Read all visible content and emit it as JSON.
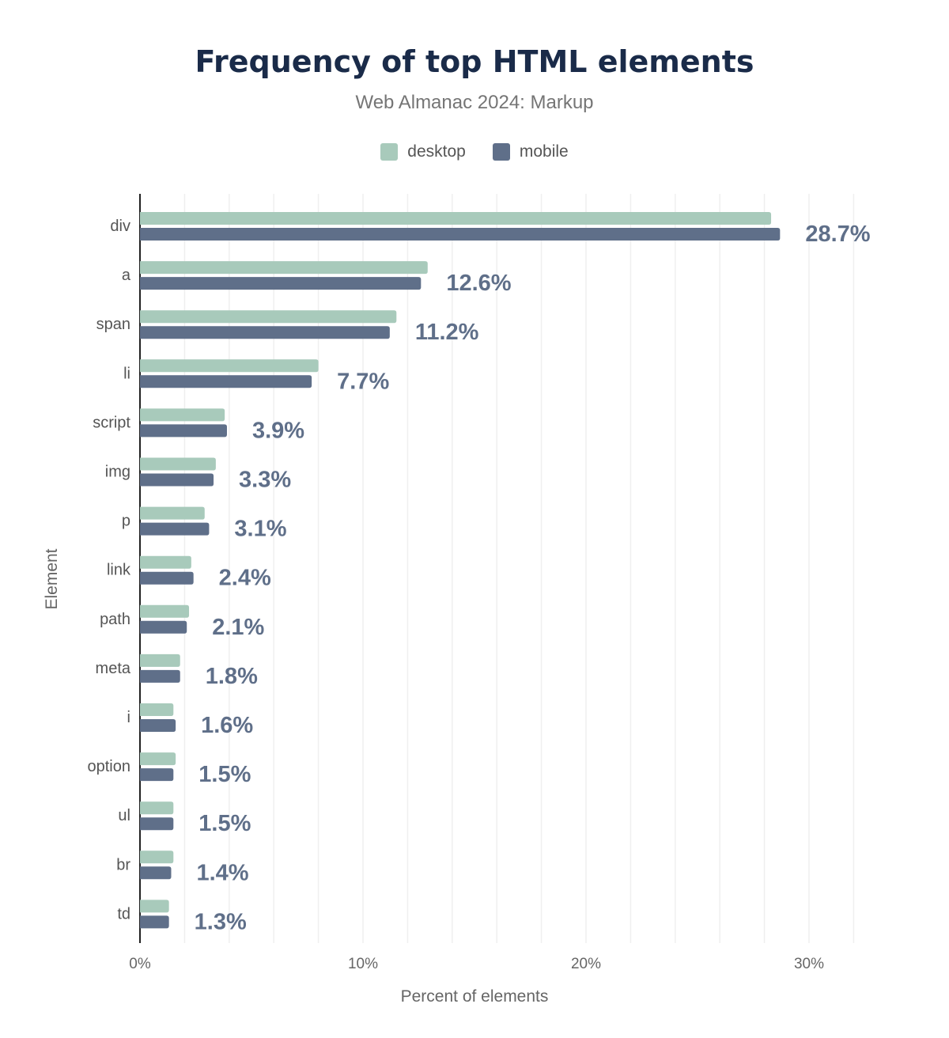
{
  "chart_data": {
    "type": "bar",
    "orientation": "horizontal",
    "title": "Frequency of top HTML elements",
    "subtitle": "Web Almanac 2024: Markup",
    "xlabel": "Percent of elements",
    "ylabel": "Element",
    "xlim": [
      0,
      33
    ],
    "xticks": [
      "0%",
      "10%",
      "20%",
      "30%"
    ],
    "xtick_values": [
      0,
      10,
      20,
      30
    ],
    "grid": true,
    "legend_position": "top",
    "categories": [
      "div",
      "a",
      "span",
      "li",
      "script",
      "img",
      "p",
      "link",
      "path",
      "meta",
      "i",
      "option",
      "ul",
      "br",
      "td"
    ],
    "series": [
      {
        "name": "desktop",
        "color": "#a8cabb",
        "values": [
          28.3,
          12.9,
          11.5,
          8.0,
          3.8,
          3.4,
          2.9,
          2.3,
          2.2,
          1.8,
          1.5,
          1.6,
          1.5,
          1.5,
          1.3
        ]
      },
      {
        "name": "mobile",
        "color": "#5f6f89",
        "values": [
          28.7,
          12.6,
          11.2,
          7.7,
          3.9,
          3.3,
          3.1,
          2.4,
          2.1,
          1.8,
          1.6,
          1.5,
          1.5,
          1.4,
          1.3
        ],
        "data_labels": [
          "28.7%",
          "12.6%",
          "11.2%",
          "7.7%",
          "3.9%",
          "3.3%",
          "3.1%",
          "2.4%",
          "2.1%",
          "1.8%",
          "1.6%",
          "1.5%",
          "1.5%",
          "1.4%",
          "1.3%"
        ]
      }
    ]
  }
}
